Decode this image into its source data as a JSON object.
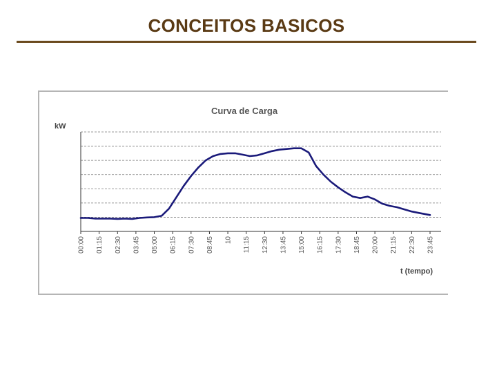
{
  "slide": {
    "title": "CONCEITOS BASICOS"
  },
  "colors": {
    "title": "#5a3a14",
    "rule": "#6b4a1e",
    "series": "#1a1a7a",
    "grid": "#777777"
  },
  "chart_data": {
    "type": "line",
    "title": "Curva de Carga",
    "xlabel": "t (tempo)",
    "ylabel": "kW",
    "grid": true,
    "legend": "none",
    "x_ticks": [
      "00:00",
      "01:15",
      "02:30",
      "03:45",
      "05:00",
      "06:15",
      "07:30",
      "08:45",
      "10",
      "11:15",
      "12:30",
      "13:45",
      "15:00",
      "16:15",
      "17:30",
      "18:45",
      "20:00",
      "21:15",
      "22:30",
      "23:45"
    ],
    "ylim": [
      0,
      7
    ],
    "series": [
      {
        "x": [
          "00:00",
          "00:30",
          "01:00",
          "01:30",
          "02:00",
          "02:30",
          "03:00",
          "03:30",
          "04:00",
          "04:30",
          "05:00",
          "05:30",
          "06:00",
          "06:30",
          "07:00",
          "07:30",
          "08:00",
          "08:30",
          "09:00",
          "09:30",
          "10:00",
          "10:30",
          "11:00",
          "11:30",
          "12:00",
          "12:30",
          "13:00",
          "13:30",
          "14:00",
          "14:30",
          "15:00",
          "15:30",
          "16:00",
          "16:30",
          "17:00",
          "17:30",
          "18:00",
          "18:30",
          "19:00",
          "19:30",
          "20:00",
          "20:30",
          "21:00",
          "21:30",
          "22:00",
          "22:30",
          "23:00",
          "23:30",
          "23:45"
        ],
        "values": [
          0.95,
          0.95,
          0.9,
          0.9,
          0.9,
          0.88,
          0.9,
          0.88,
          0.95,
          0.98,
          1.0,
          1.1,
          1.6,
          2.4,
          3.2,
          3.9,
          4.5,
          5.0,
          5.3,
          5.45,
          5.5,
          5.5,
          5.4,
          5.3,
          5.35,
          5.5,
          5.65,
          5.75,
          5.8,
          5.85,
          5.85,
          5.55,
          4.6,
          4.0,
          3.5,
          3.1,
          2.75,
          2.45,
          2.35,
          2.45,
          2.25,
          1.95,
          1.8,
          1.7,
          1.55,
          1.4,
          1.3,
          1.2,
          1.15
        ]
      }
    ]
  }
}
